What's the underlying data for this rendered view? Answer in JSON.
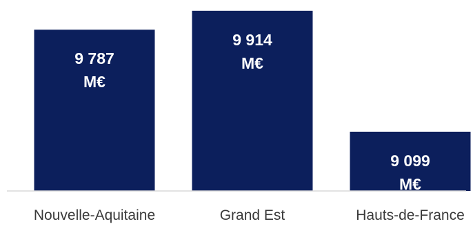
{
  "chart_data": {
    "type": "bar",
    "categories": [
      "Nouvelle-Aquitaine",
      "Grand Est",
      "Hauts-de-France"
    ],
    "values": [
      9787,
      9914,
      9099
    ],
    "data_labels": [
      [
        "9 787",
        "M€"
      ],
      [
        "9 914",
        "M€"
      ],
      [
        "9 099",
        "M€"
      ]
    ],
    "title": "",
    "xlabel": "",
    "ylabel": "",
    "ylim": [
      8700,
      9950
    ],
    "grid": false,
    "legend": "none",
    "bar_color": "#0c1f5c",
    "baseline_color": "#d9d9d9"
  }
}
